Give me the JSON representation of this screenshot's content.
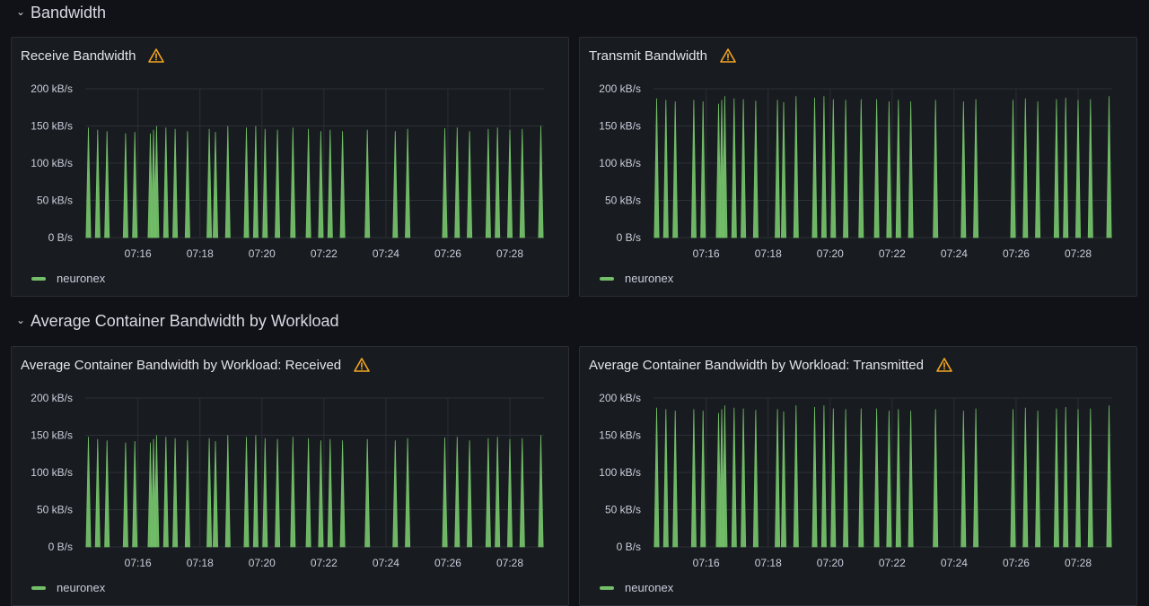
{
  "colors": {
    "series": "#73bf69",
    "warning": "#f5a623",
    "background": "#111217",
    "panel": "#181b1f"
  },
  "rows": [
    {
      "title": "Bandwidth",
      "icon": "chevron-down-icon"
    },
    {
      "title": "Average Container Bandwidth by Workload",
      "icon": "chevron-down-icon"
    }
  ],
  "panels": [
    {
      "title": "Receive Bandwidth",
      "warning_icon": "warning-icon",
      "legend": "neuronex"
    },
    {
      "title": "Transmit Bandwidth",
      "warning_icon": "warning-icon",
      "legend": "neuronex"
    },
    {
      "title": "Average Container Bandwidth by Workload: Received",
      "warning_icon": "warning-icon",
      "legend": "neuronex"
    },
    {
      "title": "Average Container Bandwidth by Workload: Transmitted",
      "warning_icon": "warning-icon",
      "legend": "neuronex"
    }
  ],
  "chart_data": [
    {
      "type": "area",
      "title": "Receive Bandwidth",
      "ylabel": "",
      "xlabel": "",
      "ylim": [
        0,
        200
      ],
      "y_ticks": [
        "0 B/s",
        "50 kB/s",
        "100 kB/s",
        "150 kB/s",
        "200 kB/s"
      ],
      "x_ticks": [
        "07:16",
        "07:18",
        "07:20",
        "07:22",
        "07:24",
        "07:26",
        "07:28"
      ],
      "x_range_minutes": [
        14.3,
        29.1
      ],
      "series": [
        {
          "name": "neuronex",
          "spikes": [
            [
              14.4,
              148
            ],
            [
              14.7,
              145
            ],
            [
              15.0,
              143
            ],
            [
              15.6,
              140
            ],
            [
              15.9,
              142
            ],
            [
              16.4,
              140
            ],
            [
              16.5,
              145
            ],
            [
              16.6,
              150
            ],
            [
              16.9,
              148
            ],
            [
              17.2,
              146
            ],
            [
              17.6,
              143
            ],
            [
              18.3,
              146
            ],
            [
              18.5,
              142
            ],
            [
              18.9,
              150
            ],
            [
              19.5,
              148
            ],
            [
              19.8,
              150
            ],
            [
              20.1,
              146
            ],
            [
              20.5,
              145
            ],
            [
              21.0,
              148
            ],
            [
              21.5,
              146
            ],
            [
              21.9,
              143
            ],
            [
              22.2,
              145
            ],
            [
              22.6,
              143
            ],
            [
              23.4,
              145
            ],
            [
              24.3,
              143
            ],
            [
              24.7,
              146
            ],
            [
              25.9,
              147
            ],
            [
              26.3,
              148
            ],
            [
              26.7,
              143
            ],
            [
              27.3,
              146
            ],
            [
              27.6,
              148
            ],
            [
              28.0,
              145
            ],
            [
              28.4,
              146
            ],
            [
              29.0,
              150
            ]
          ]
        }
      ]
    },
    {
      "type": "area",
      "title": "Transmit Bandwidth",
      "ylabel": "",
      "xlabel": "",
      "ylim": [
        0,
        200
      ],
      "y_ticks": [
        "0 B/s",
        "50 kB/s",
        "100 kB/s",
        "150 kB/s",
        "200 kB/s"
      ],
      "x_ticks": [
        "07:16",
        "07:18",
        "07:20",
        "07:22",
        "07:24",
        "07:26",
        "07:28"
      ],
      "x_range_minutes": [
        14.3,
        29.1
      ],
      "series": [
        {
          "name": "neuronex",
          "spikes": [
            [
              14.4,
              187
            ],
            [
              14.7,
              185
            ],
            [
              15.0,
              183
            ],
            [
              15.6,
              185
            ],
            [
              15.9,
              183
            ],
            [
              16.4,
              180
            ],
            [
              16.5,
              185
            ],
            [
              16.6,
              190
            ],
            [
              16.9,
              187
            ],
            [
              17.2,
              186
            ],
            [
              17.6,
              184
            ],
            [
              18.3,
              185
            ],
            [
              18.5,
              182
            ],
            [
              18.9,
              190
            ],
            [
              19.5,
              188
            ],
            [
              19.8,
              190
            ],
            [
              20.1,
              186
            ],
            [
              20.5,
              185
            ],
            [
              21.0,
              186
            ],
            [
              21.5,
              186
            ],
            [
              21.9,
              183
            ],
            [
              22.2,
              185
            ],
            [
              22.6,
              183
            ],
            [
              23.4,
              185
            ],
            [
              24.3,
              183
            ],
            [
              24.7,
              186
            ],
            [
              25.9,
              185
            ],
            [
              26.3,
              187
            ],
            [
              26.7,
              183
            ],
            [
              27.3,
              186
            ],
            [
              27.6,
              188
            ],
            [
              28.0,
              185
            ],
            [
              28.4,
              186
            ],
            [
              29.0,
              190
            ]
          ]
        }
      ]
    },
    {
      "type": "area",
      "title": "Average Container Bandwidth by Workload: Received",
      "ylabel": "",
      "xlabel": "",
      "ylim": [
        0,
        200
      ],
      "y_ticks": [
        "0 B/s",
        "50 kB/s",
        "100 kB/s",
        "150 kB/s",
        "200 kB/s"
      ],
      "x_ticks": [
        "07:16",
        "07:18",
        "07:20",
        "07:22",
        "07:24",
        "07:26",
        "07:28"
      ],
      "x_range_minutes": [
        14.3,
        29.1
      ],
      "series": [
        {
          "name": "neuronex",
          "spikes": [
            [
              14.4,
              148
            ],
            [
              14.7,
              145
            ],
            [
              15.0,
              143
            ],
            [
              15.6,
              140
            ],
            [
              15.9,
              142
            ],
            [
              16.4,
              140
            ],
            [
              16.5,
              145
            ],
            [
              16.6,
              150
            ],
            [
              16.9,
              148
            ],
            [
              17.2,
              146
            ],
            [
              17.6,
              143
            ],
            [
              18.3,
              146
            ],
            [
              18.5,
              142
            ],
            [
              18.9,
              150
            ],
            [
              19.5,
              148
            ],
            [
              19.8,
              150
            ],
            [
              20.1,
              146
            ],
            [
              20.5,
              145
            ],
            [
              21.0,
              148
            ],
            [
              21.5,
              146
            ],
            [
              21.9,
              143
            ],
            [
              22.2,
              145
            ],
            [
              22.6,
              143
            ],
            [
              23.4,
              145
            ],
            [
              24.3,
              143
            ],
            [
              24.7,
              146
            ],
            [
              25.9,
              147
            ],
            [
              26.3,
              148
            ],
            [
              26.7,
              143
            ],
            [
              27.3,
              146
            ],
            [
              27.6,
              148
            ],
            [
              28.0,
              145
            ],
            [
              28.4,
              146
            ],
            [
              29.0,
              150
            ]
          ]
        }
      ]
    },
    {
      "type": "area",
      "title": "Average Container Bandwidth by Workload: Transmitted",
      "ylabel": "",
      "xlabel": "",
      "ylim": [
        0,
        200
      ],
      "y_ticks": [
        "0 B/s",
        "50 kB/s",
        "100 kB/s",
        "150 kB/s",
        "200 kB/s"
      ],
      "x_ticks": [
        "07:16",
        "07:18",
        "07:20",
        "07:22",
        "07:24",
        "07:26",
        "07:28"
      ],
      "x_range_minutes": [
        14.3,
        29.1
      ],
      "series": [
        {
          "name": "neuronex",
          "spikes": [
            [
              14.4,
              187
            ],
            [
              14.7,
              185
            ],
            [
              15.0,
              183
            ],
            [
              15.6,
              185
            ],
            [
              15.9,
              183
            ],
            [
              16.4,
              180
            ],
            [
              16.5,
              185
            ],
            [
              16.6,
              190
            ],
            [
              16.9,
              187
            ],
            [
              17.2,
              186
            ],
            [
              17.6,
              184
            ],
            [
              18.3,
              185
            ],
            [
              18.5,
              182
            ],
            [
              18.9,
              190
            ],
            [
              19.5,
              188
            ],
            [
              19.8,
              190
            ],
            [
              20.1,
              186
            ],
            [
              20.5,
              185
            ],
            [
              21.0,
              186
            ],
            [
              21.5,
              186
            ],
            [
              21.9,
              183
            ],
            [
              22.2,
              185
            ],
            [
              22.6,
              183
            ],
            [
              23.4,
              185
            ],
            [
              24.3,
              183
            ],
            [
              24.7,
              186
            ],
            [
              25.9,
              185
            ],
            [
              26.3,
              187
            ],
            [
              26.7,
              183
            ],
            [
              27.3,
              186
            ],
            [
              27.6,
              188
            ],
            [
              28.0,
              185
            ],
            [
              28.4,
              186
            ],
            [
              29.0,
              190
            ]
          ]
        }
      ]
    }
  ]
}
